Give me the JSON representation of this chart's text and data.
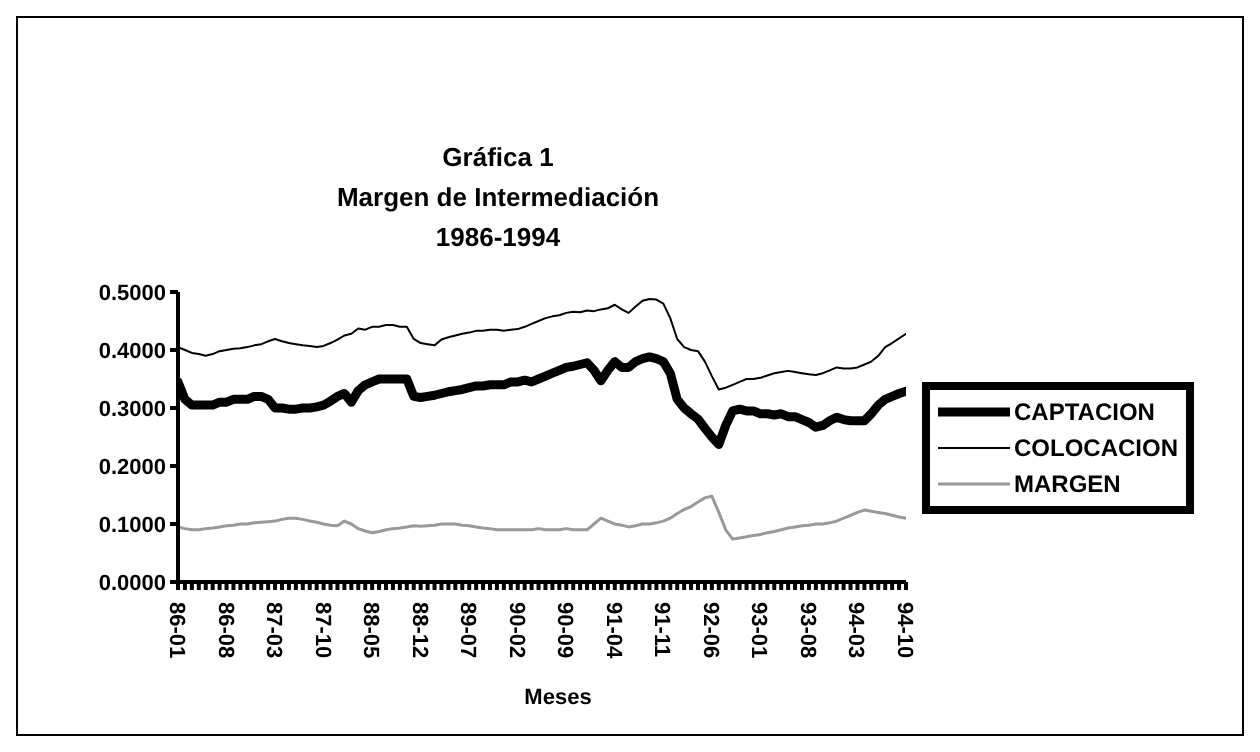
{
  "chart_data": {
    "type": "line",
    "title": "Gráfica 1",
    "subtitle": "Margen de Intermediación 1986-1994",
    "xlabel": "Meses",
    "categories": [
      "86-01",
      null,
      null,
      null,
      null,
      null,
      null,
      "86-08",
      null,
      null,
      null,
      null,
      null,
      null,
      "87-03",
      null,
      null,
      null,
      null,
      null,
      null,
      "87-10",
      null,
      null,
      null,
      null,
      null,
      null,
      "88-05",
      null,
      null,
      null,
      null,
      null,
      null,
      "88-12",
      null,
      null,
      null,
      null,
      null,
      null,
      "89-07",
      null,
      null,
      null,
      null,
      null,
      null,
      "90-02",
      null,
      null,
      null,
      null,
      null,
      null,
      "90-09",
      null,
      null,
      null,
      null,
      null,
      null,
      "91-04",
      null,
      null,
      null,
      null,
      null,
      null,
      "91-11",
      null,
      null,
      null,
      null,
      null,
      null,
      "92-06",
      null,
      null,
      null,
      null,
      null,
      null,
      "93-01",
      null,
      null,
      null,
      null,
      null,
      null,
      "93-08",
      null,
      null,
      null,
      null,
      null,
      null,
      "94-03",
      null,
      null,
      null,
      null,
      null,
      null,
      "94-10"
    ],
    "ylim": [
      0,
      0.5
    ],
    "yticks": [
      {
        "value": 0,
        "label": "0.0000"
      },
      {
        "value": 0.1,
        "label": "0.1000"
      },
      {
        "value": 0.2,
        "label": "0.2000"
      },
      {
        "value": 0.3,
        "label": "0.3000"
      },
      {
        "value": 0.4,
        "label": "0.4000"
      },
      {
        "value": 0.5,
        "label": "0.5000"
      }
    ],
    "grid": false,
    "legend": "right",
    "marker": "none",
    "series": [
      {
        "name": "CAPTACION",
        "color": "#000000",
        "values": [
          0.345,
          0.315,
          0.305,
          0.305,
          0.305,
          0.305,
          0.31,
          0.31,
          0.315,
          0.315,
          0.315,
          0.32,
          0.32,
          0.315,
          0.3,
          0.3,
          0.298,
          0.298,
          0.3,
          0.3,
          0.302,
          0.305,
          0.312,
          0.32,
          0.325,
          0.31,
          0.33,
          0.34,
          0.345,
          0.35,
          0.35,
          0.35,
          0.35,
          0.35,
          0.32,
          0.318,
          0.32,
          0.322,
          0.325,
          0.328,
          0.33,
          0.332,
          0.335,
          0.338,
          0.338,
          0.34,
          0.34,
          0.34,
          0.345,
          0.345,
          0.348,
          0.345,
          0.35,
          0.355,
          0.36,
          0.365,
          0.37,
          0.372,
          0.375,
          0.378,
          0.365,
          0.347,
          0.365,
          0.38,
          0.37,
          0.37,
          0.38,
          0.385,
          0.388,
          0.385,
          0.38,
          0.36,
          0.315,
          0.3,
          0.29,
          0.281,
          0.265,
          0.25,
          0.237,
          0.27,
          0.295,
          0.298,
          0.295,
          0.295,
          0.29,
          0.29,
          0.288,
          0.29,
          0.285,
          0.285,
          0.28,
          0.275,
          0.267,
          0.27,
          0.278,
          0.284,
          0.28,
          0.278,
          0.278,
          0.278,
          0.29,
          0.305,
          0.315,
          0.32,
          0.325,
          0.329
        ]
      },
      {
        "name": "COLOCACION",
        "color": "#000000",
        "values": [
          0.405,
          0.4,
          0.395,
          0.393,
          0.39,
          0.393,
          0.398,
          0.4,
          0.402,
          0.403,
          0.405,
          0.408,
          0.41,
          0.415,
          0.419,
          0.415,
          0.412,
          0.41,
          0.408,
          0.407,
          0.405,
          0.407,
          0.412,
          0.418,
          0.425,
          0.428,
          0.437,
          0.435,
          0.44,
          0.44,
          0.443,
          0.443,
          0.44,
          0.44,
          0.419,
          0.412,
          0.41,
          0.408,
          0.418,
          0.422,
          0.425,
          0.428,
          0.43,
          0.433,
          0.433,
          0.435,
          0.435,
          0.433,
          0.435,
          0.436,
          0.44,
          0.445,
          0.45,
          0.455,
          0.458,
          0.46,
          0.464,
          0.466,
          0.465,
          0.468,
          0.467,
          0.47,
          0.472,
          0.478,
          0.47,
          0.464,
          0.475,
          0.485,
          0.488,
          0.487,
          0.48,
          0.455,
          0.419,
          0.405,
          0.4,
          0.398,
          0.38,
          0.355,
          0.332,
          0.335,
          0.34,
          0.345,
          0.35,
          0.35,
          0.352,
          0.356,
          0.36,
          0.362,
          0.364,
          0.362,
          0.36,
          0.358,
          0.357,
          0.36,
          0.365,
          0.37,
          0.368,
          0.368,
          0.37,
          0.375,
          0.38,
          0.39,
          0.405,
          0.412,
          0.42,
          0.428
        ]
      },
      {
        "name": "MARGEN",
        "color": "#999999",
        "values": [
          0.095,
          0.092,
          0.09,
          0.09,
          0.092,
          0.093,
          0.095,
          0.097,
          0.098,
          0.1,
          0.1,
          0.102,
          0.103,
          0.104,
          0.105,
          0.108,
          0.11,
          0.11,
          0.108,
          0.105,
          0.103,
          0.1,
          0.098,
          0.097,
          0.105,
          0.1,
          0.092,
          0.088,
          0.085,
          0.087,
          0.09,
          0.092,
          0.093,
          0.095,
          0.097,
          0.096,
          0.097,
          0.098,
          0.1,
          0.1,
          0.1,
          0.098,
          0.097,
          0.095,
          0.093,
          0.092,
          0.09,
          0.09,
          0.09,
          0.09,
          0.09,
          0.09,
          0.092,
          0.09,
          0.09,
          0.09,
          0.092,
          0.09,
          0.09,
          0.09,
          0.1,
          0.11,
          0.105,
          0.1,
          0.098,
          0.095,
          0.097,
          0.1,
          0.1,
          0.102,
          0.105,
          0.11,
          0.118,
          0.125,
          0.13,
          0.138,
          0.145,
          0.148,
          0.12,
          0.09,
          0.074,
          0.076,
          0.078,
          0.08,
          0.082,
          0.085,
          0.087,
          0.09,
          0.093,
          0.095,
          0.097,
          0.098,
          0.1,
          0.1,
          0.102,
          0.105,
          0.11,
          0.115,
          0.12,
          0.124,
          0.122,
          0.12,
          0.118,
          0.115,
          0.112,
          0.11
        ]
      }
    ]
  }
}
